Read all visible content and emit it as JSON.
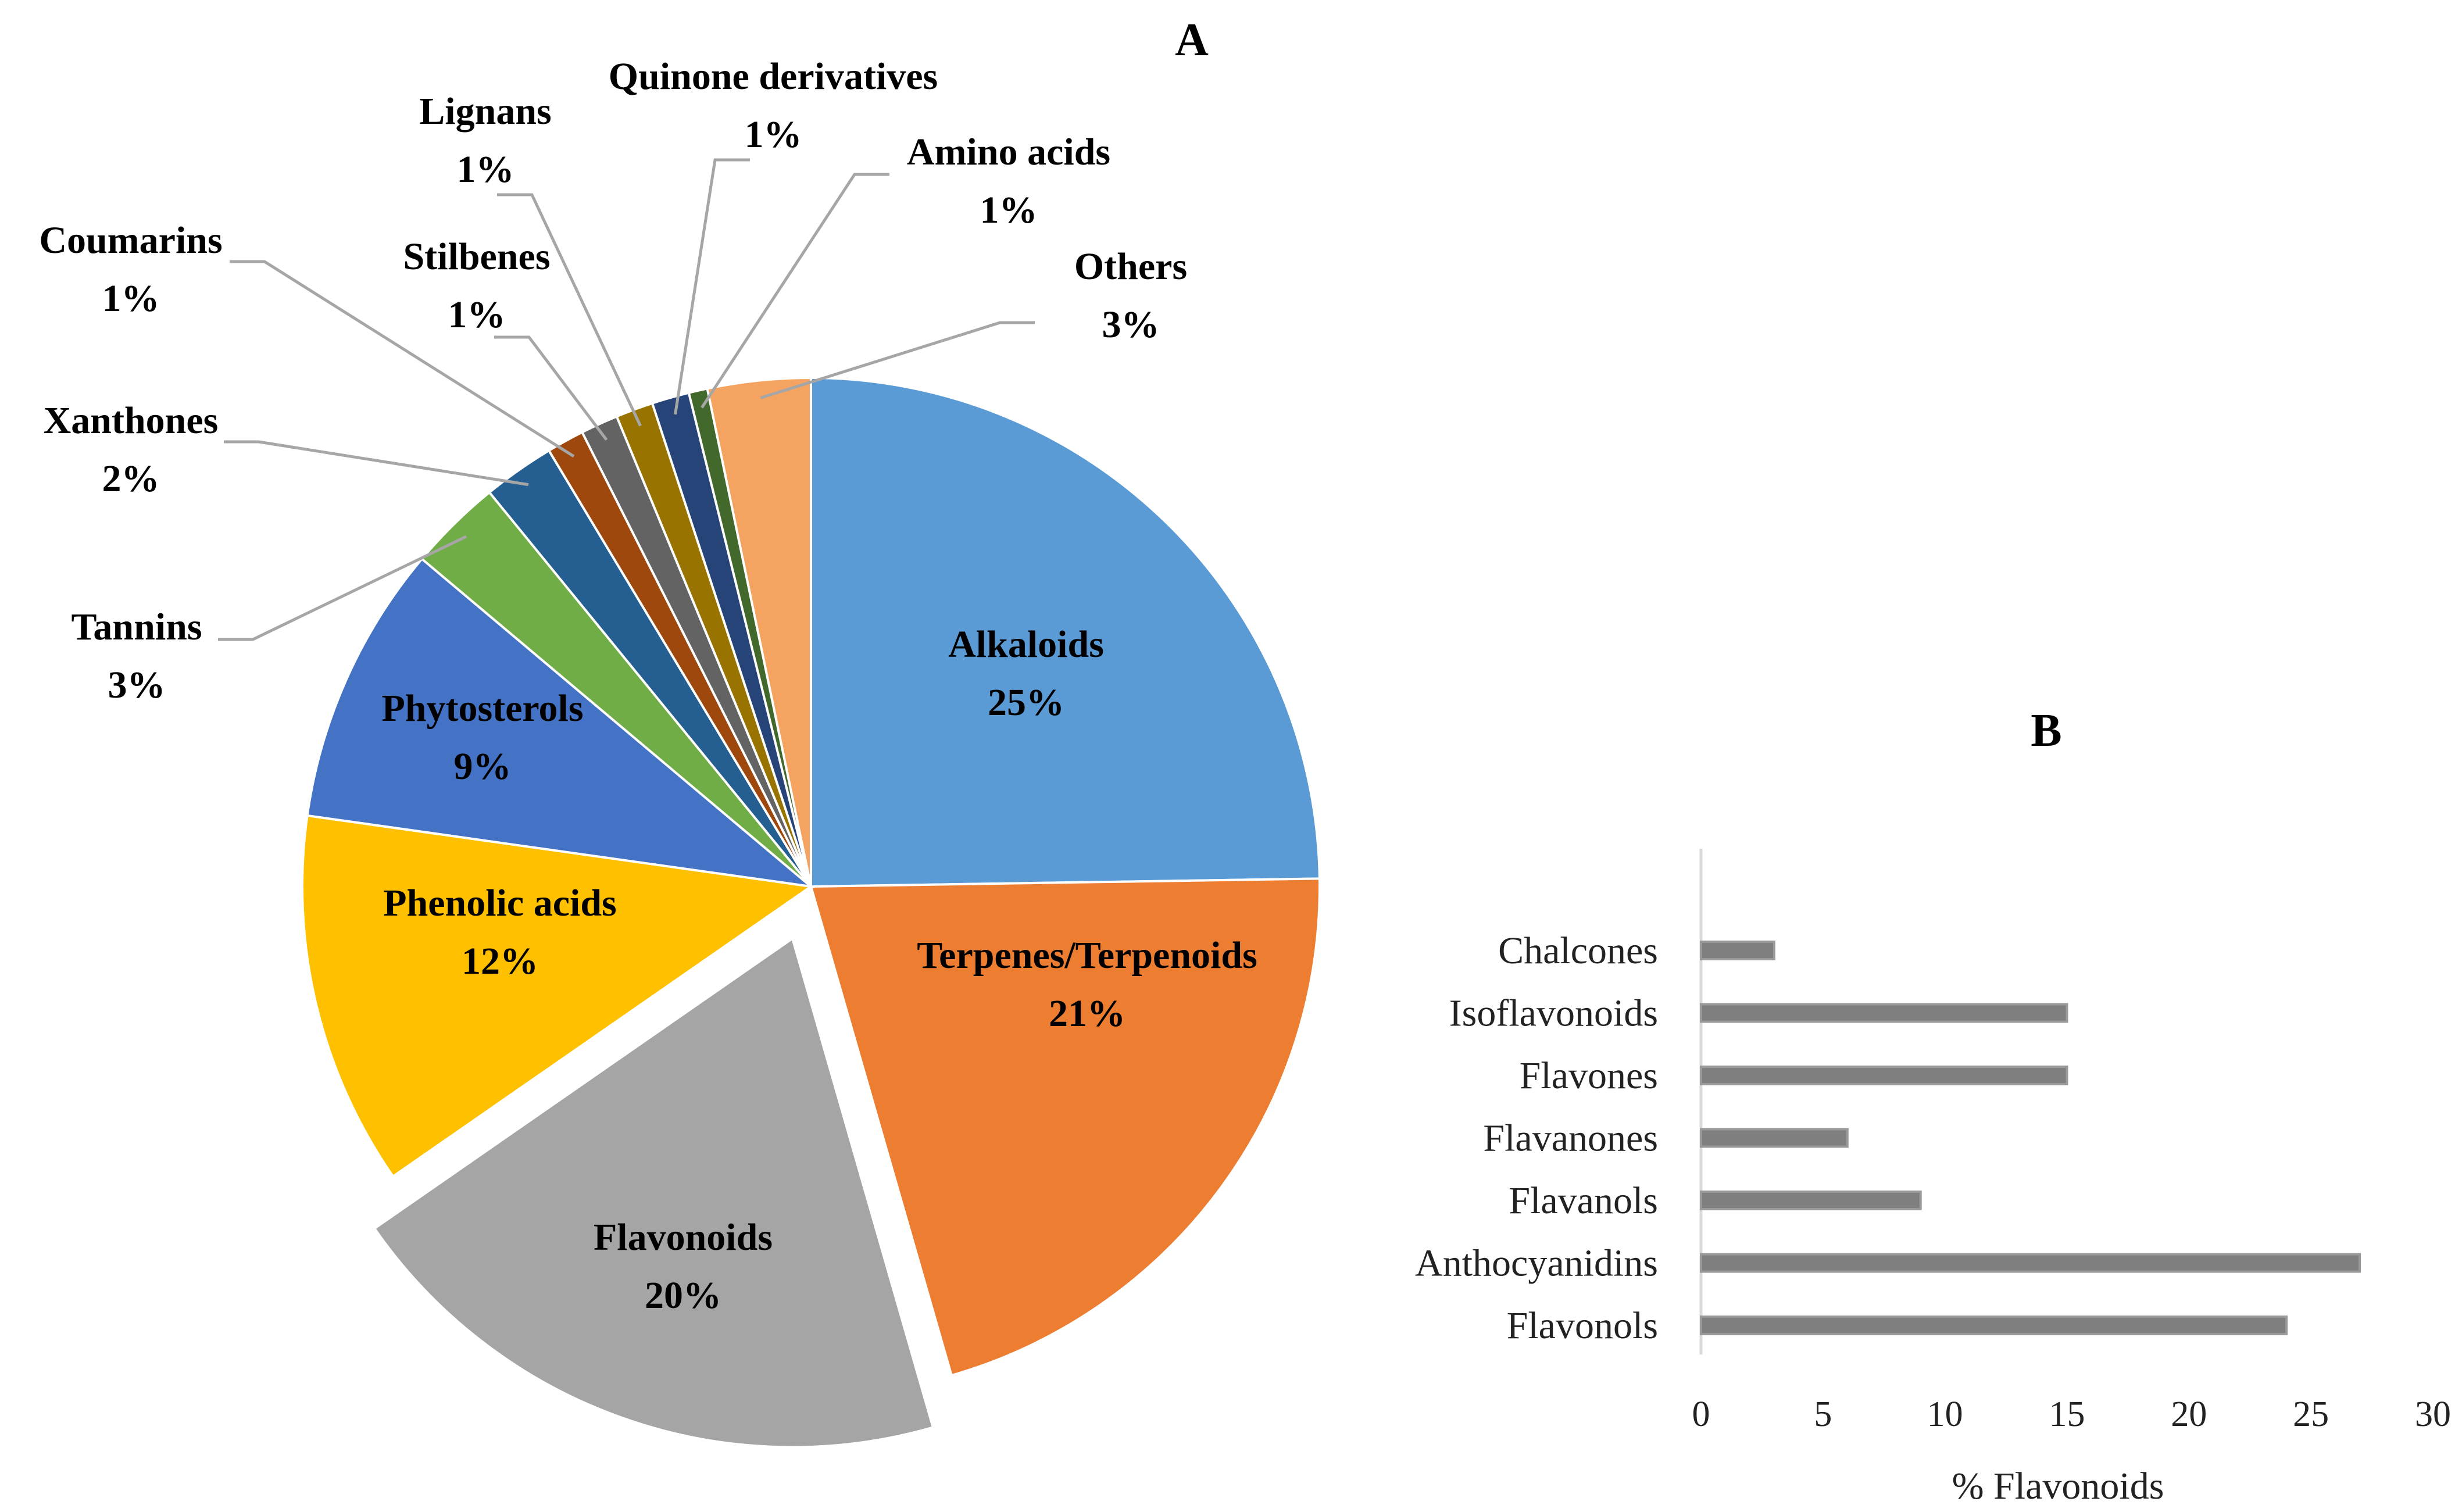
{
  "chart_data": [
    {
      "type": "pie",
      "panel_label": "A",
      "title": "",
      "exploded": "Flavonoids",
      "slices": [
        {
          "label": "Alkaloids",
          "value": 25,
          "value_text": "25%",
          "color": "#5B9BD5"
        },
        {
          "label": "Terpenes/Terpenoids",
          "value": 21,
          "value_text": "21%",
          "color": "#ED7D31"
        },
        {
          "label": "Flavonoids",
          "value": 20,
          "value_text": "20%",
          "color": "#A5A5A5"
        },
        {
          "label": "Phenolic acids",
          "value": 12,
          "value_text": "12%",
          "color": "#FFC000"
        },
        {
          "label": "Phytosterols",
          "value": 9,
          "value_text": "9%",
          "color": "#4472C4"
        },
        {
          "label": "Tannins",
          "value": 3,
          "value_text": "3%",
          "color": "#70AD47"
        },
        {
          "label": "Xanthones",
          "value": 2.3,
          "value_text": "2%",
          "color": "#255E91"
        },
        {
          "label": "Coumarins",
          "value": 1.2,
          "value_text": "1%",
          "color": "#9E480E"
        },
        {
          "label": "Stilbenes",
          "value": 1.2,
          "value_text": "1%",
          "color": "#636363"
        },
        {
          "label": "Lignans",
          "value": 1.2,
          "value_text": "1%",
          "color": "#997300"
        },
        {
          "label": "Quinone derivatives",
          "value": 1.2,
          "value_text": "1%",
          "color": "#264478"
        },
        {
          "label": "Amino acids",
          "value": 0.6,
          "value_text": "1%",
          "color": "#43682B"
        },
        {
          "label": "Others",
          "value": 3.3,
          "value_text": "3%",
          "color": "#F4A460"
        }
      ]
    },
    {
      "type": "bar",
      "orientation": "horizontal",
      "panel_label": "B",
      "title": "",
      "xlabel": "% Flavonoids",
      "ylabel": "",
      "xlim": [
        0,
        30
      ],
      "xticks": [
        "0",
        "5",
        "10",
        "15",
        "20",
        "25",
        "30"
      ],
      "bar_color": "#7F7F7F",
      "categories": [
        "Chalcones",
        "Isoflavonoids",
        "Flavones",
        "Flavanones",
        "Flavanols",
        "Anthocyanidins",
        "Flavonols"
      ],
      "values": [
        3,
        15,
        15,
        6,
        9,
        27,
        24
      ]
    }
  ]
}
